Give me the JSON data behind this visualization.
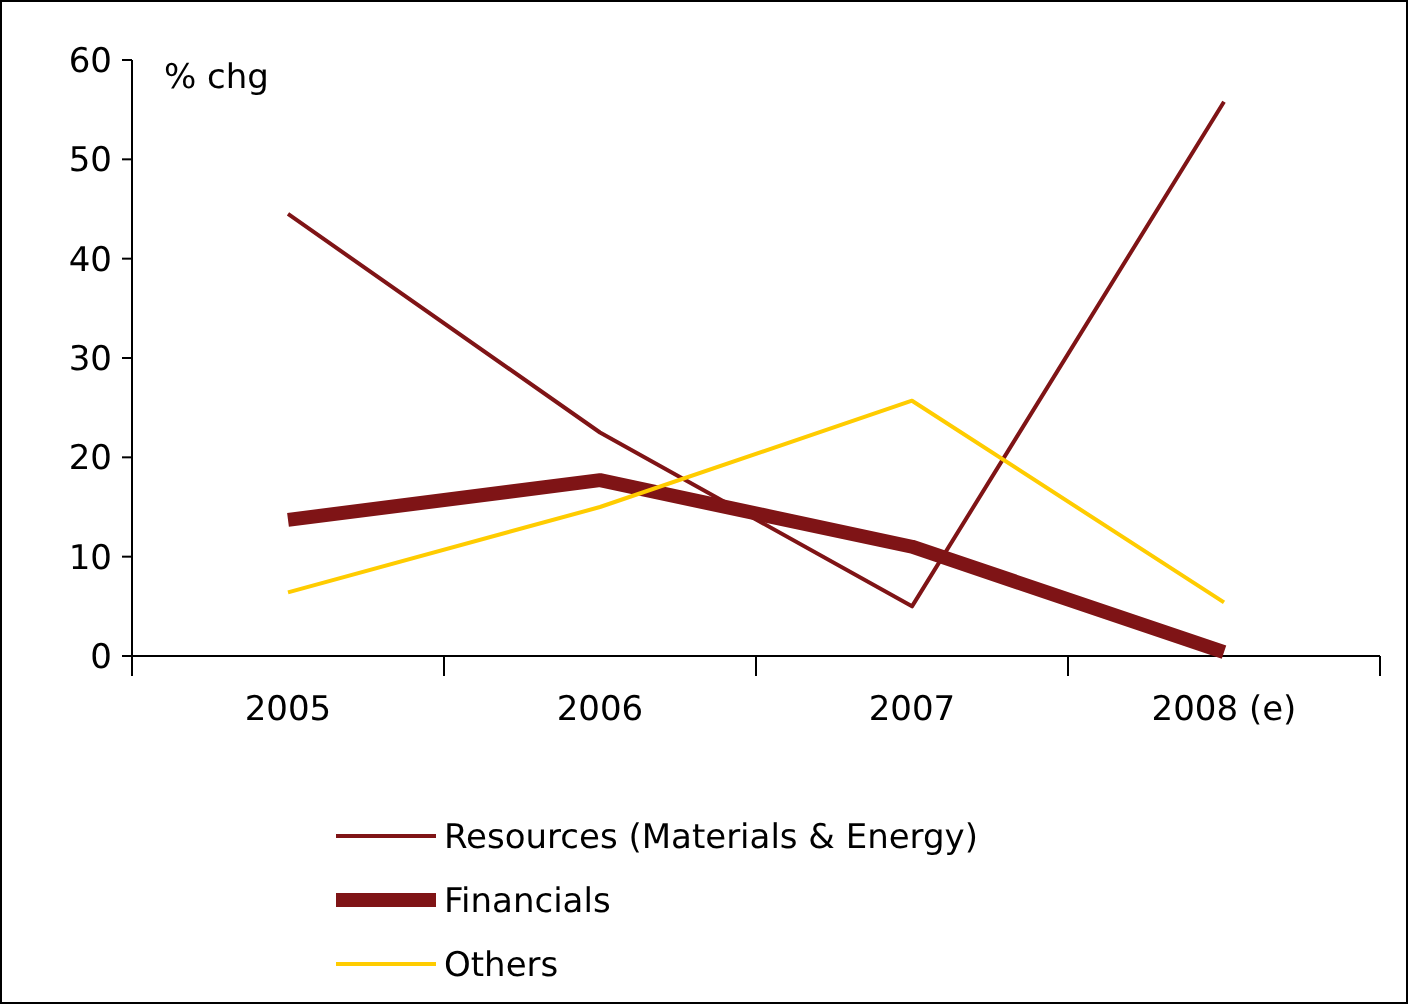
{
  "chart_data": {
    "type": "line",
    "ylabel": "% chg",
    "categories": [
      "2005",
      "2006",
      "2007",
      "2008 (e)"
    ],
    "series": [
      {
        "name": "Resources (Materials & Energy)",
        "color": "#7f1416",
        "values": [
          44.5,
          22.5,
          5,
          55.8
        ]
      },
      {
        "name": "Financials",
        "color": "#7f1416",
        "values": [
          13.7,
          17.7,
          11,
          0.4
        ]
      },
      {
        "name": "Others",
        "color": "#ffcc00",
        "values": [
          6.4,
          15,
          25.7,
          5.4
        ]
      }
    ],
    "ylim": [
      0,
      60
    ],
    "yticks": [
      0,
      10,
      20,
      30,
      40,
      50,
      60
    ],
    "grid": false,
    "legend": "bottom",
    "line_style": "solid"
  }
}
